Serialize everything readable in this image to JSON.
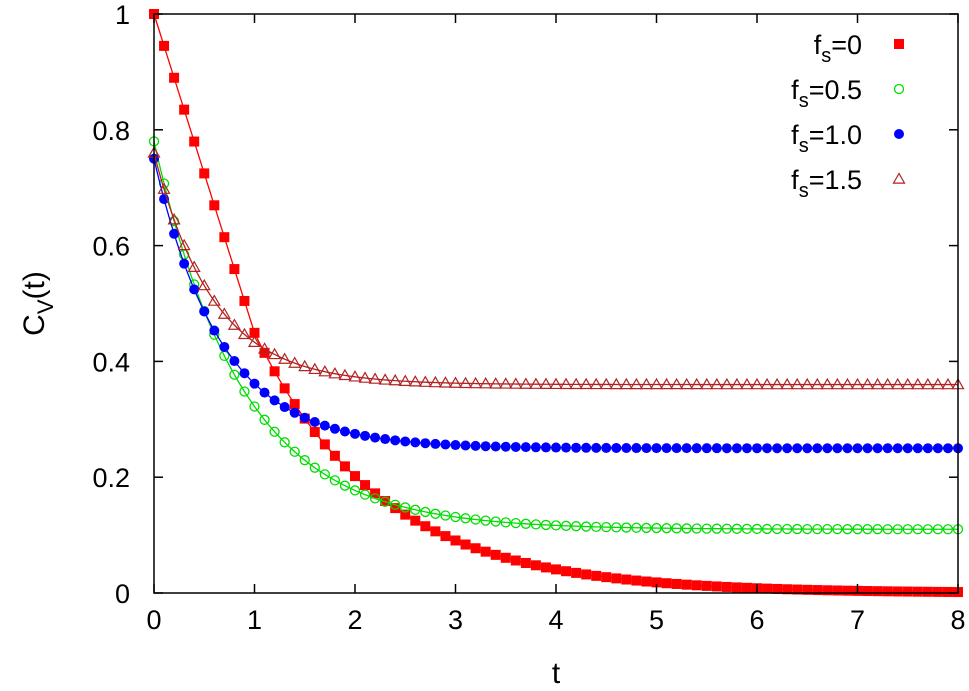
{
  "chart_data": {
    "type": "scatter",
    "title": "",
    "xlabel": "t",
    "ylabel": {
      "main": "C",
      "sub": "V",
      "tail": "(t)"
    },
    "xlim": [
      0,
      8
    ],
    "ylim": [
      0,
      1
    ],
    "xticks": [
      "0",
      "1",
      "2",
      "3",
      "4",
      "5",
      "6",
      "7",
      "8"
    ],
    "yticks": [
      "0",
      "0.2",
      "0.4",
      "0.6",
      "0.8",
      "1"
    ],
    "grid": false,
    "legend_position": "top-right",
    "series": [
      {
        "name": {
          "main": "f",
          "sub": "s",
          "tail": "=0"
        },
        "marker": "filled-square",
        "color": "#ff0000",
        "model": {
          "a": 1.0,
          "b": 0.0,
          "k": 0.8,
          "kind": "gaussian-exponential",
          "tc": 1.0
        },
        "t_step": 0.1
      },
      {
        "name": {
          "main": "f",
          "sub": "s",
          "tail": "=0.5"
        },
        "marker": "open-circle",
        "color": "#00dd00",
        "model": {
          "a": 0.67,
          "b": 0.11,
          "k": 1.15,
          "kind": "exponential"
        },
        "t_step": 0.1
      },
      {
        "name": {
          "main": "f",
          "sub": "s",
          "tail": "=1.0"
        },
        "marker": "filled-circle",
        "color": "#0000ff",
        "model": {
          "a": 0.5,
          "b": 0.25,
          "k": 1.5,
          "kind": "exponential"
        },
        "t_step": 0.1
      },
      {
        "name": {
          "main": "f",
          "sub": "s",
          "tail": "=1.5"
        },
        "marker": "open-triangle",
        "color": "#b22222",
        "model": {
          "a": 0.4,
          "b": 0.36,
          "k": 1.7,
          "kind": "exponential"
        },
        "t_step": 0.1
      }
    ]
  }
}
